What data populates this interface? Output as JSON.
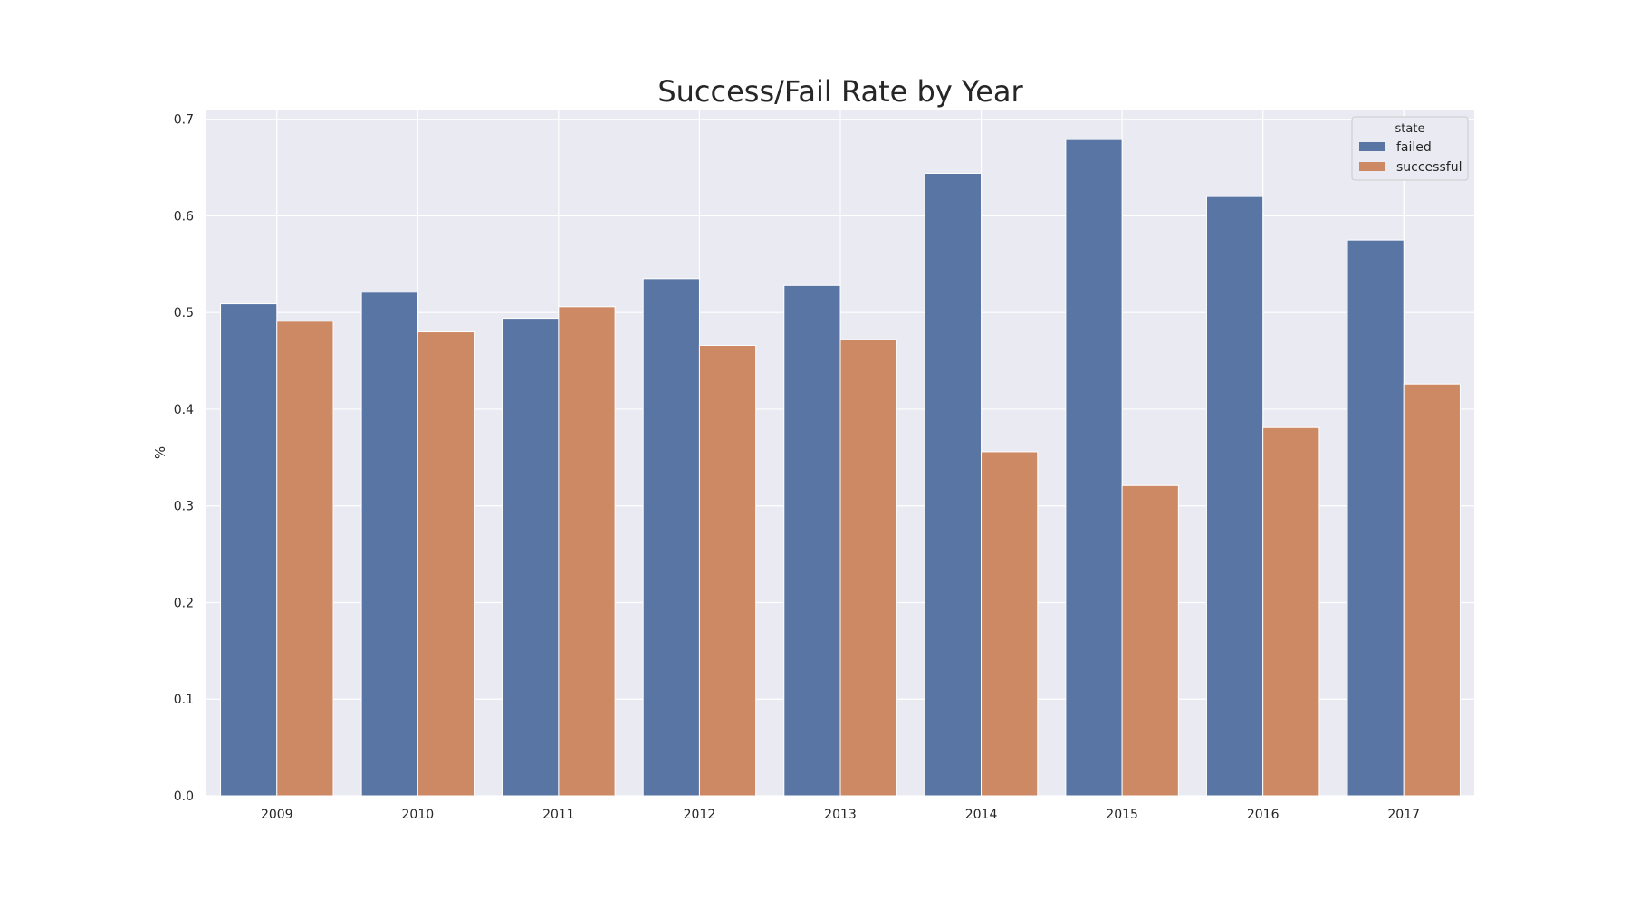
{
  "chart_data": {
    "type": "bar",
    "title": "Success/Fail Rate by Year",
    "xlabel": "",
    "ylabel": "%",
    "categories": [
      "2009",
      "2010",
      "2011",
      "2012",
      "2013",
      "2014",
      "2015",
      "2016",
      "2017"
    ],
    "series": [
      {
        "name": "failed",
        "color": "#5975a4",
        "values": [
          0.509,
          0.521,
          0.494,
          0.535,
          0.528,
          0.644,
          0.679,
          0.62,
          0.575
        ]
      },
      {
        "name": "successful",
        "color": "#cc8963",
        "values": [
          0.491,
          0.48,
          0.506,
          0.466,
          0.472,
          0.356,
          0.321,
          0.381,
          0.426
        ]
      }
    ],
    "ylim": [
      0,
      0.71
    ],
    "yticks": [
      "0.0",
      "0.1",
      "0.2",
      "0.3",
      "0.4",
      "0.5",
      "0.6",
      "0.7"
    ],
    "grid": true,
    "legend": {
      "title": "state",
      "placement": "top-right"
    },
    "background": "#eaeaf2",
    "grid_color": "#ffffff"
  }
}
